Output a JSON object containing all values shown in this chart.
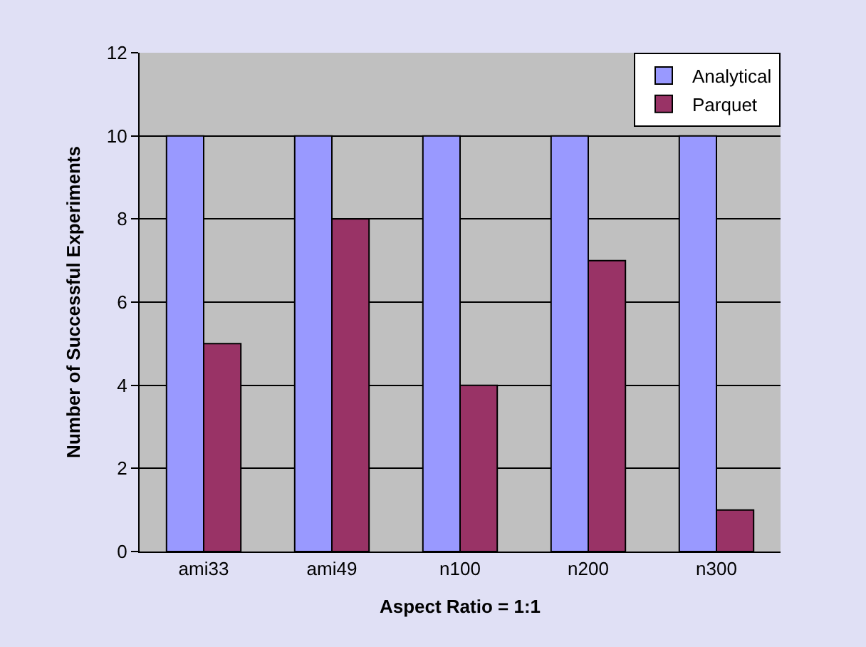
{
  "chart_data": {
    "type": "bar",
    "xlabel": "Aspect Ratio = 1:1",
    "ylabel": "Number of Successful Experiments",
    "categories": [
      "ami33",
      "ami49",
      "n100",
      "n200",
      "n300"
    ],
    "series": [
      {
        "name": "Analytical",
        "color": "#9999ff",
        "values": [
          10,
          10,
          10,
          10,
          10
        ]
      },
      {
        "name": "Parquet",
        "color": "#993366",
        "values": [
          5,
          8,
          4,
          7,
          1
        ]
      }
    ],
    "ylim": [
      0,
      12
    ],
    "yticks": [
      0,
      2,
      4,
      6,
      8,
      10,
      12
    ],
    "grid": "y",
    "legend": "top right"
  }
}
